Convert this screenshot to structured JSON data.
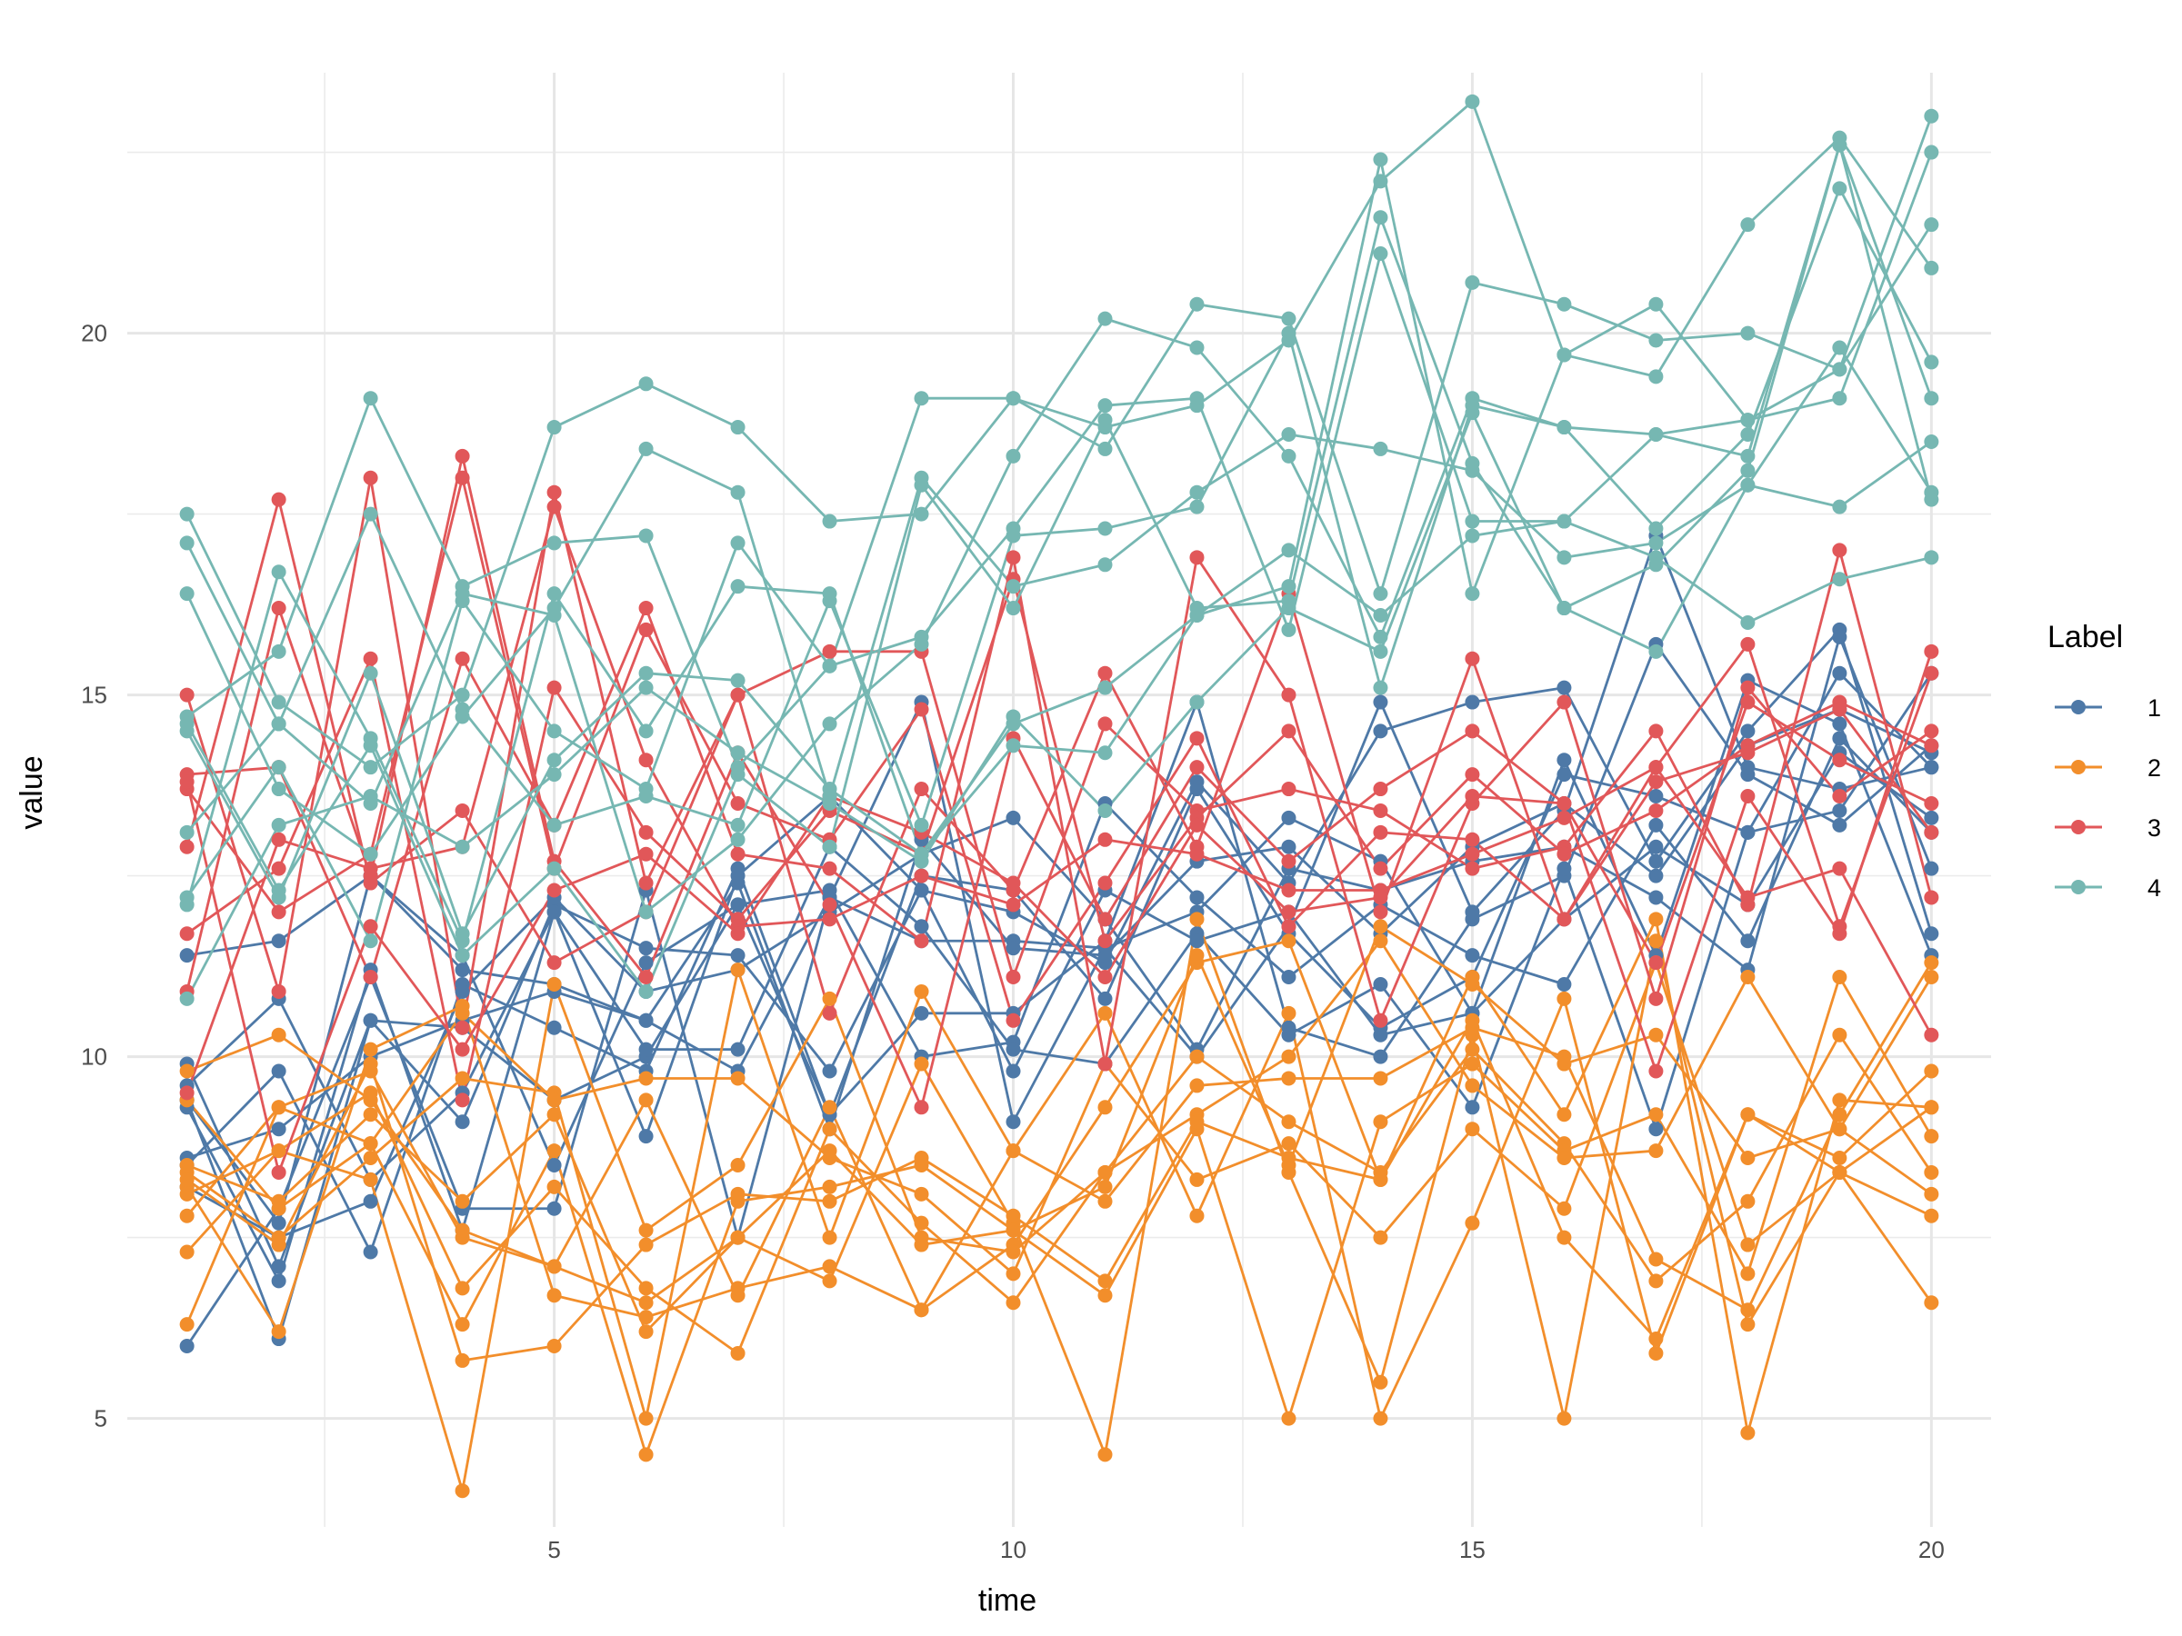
{
  "chart_data": {
    "type": "line",
    "xlabel": "time",
    "ylabel": "value",
    "xlim": [
      0.35,
      20.65
    ],
    "ylim": [
      3.5,
      23.6
    ],
    "x_ticks": [
      5,
      10,
      15,
      20
    ],
    "x_tick_labels": [
      "5",
      "10",
      "15",
      "20"
    ],
    "y_ticks": [
      5,
      10,
      15,
      20
    ],
    "y_tick_labels": [
      "5",
      "10",
      "15",
      "20"
    ],
    "x_minor": [
      2.5,
      7.5,
      12.5,
      17.5
    ],
    "y_minor": [
      7.5,
      12.5,
      17.5,
      22.5
    ],
    "grid": true,
    "legend": {
      "title": "Label",
      "position": "right",
      "entries": [
        {
          "label": "1",
          "color": "#4e79a7"
        },
        {
          "label": "2",
          "color": "#f28e2b"
        },
        {
          "label": "3",
          "color": "#e15759"
        },
        {
          "label": "4",
          "color": "#76b7b2"
        }
      ]
    },
    "x": [
      1,
      2,
      3,
      4,
      5,
      6,
      7,
      8,
      9,
      10,
      11,
      12,
      13,
      14,
      15,
      16,
      17,
      18,
      19,
      20
    ],
    "series": [
      {
        "group": "1",
        "values": [
          9.9,
          7.1,
          10.5,
          9.1,
          12.1,
          11.5,
          11.4,
          9.8,
          12.3,
          12.0,
          11.3,
          13.8,
          12.4,
          14.5,
          14.9,
          15.1,
          12.7,
          14.5,
          15.9,
          11.7
        ]
      },
      {
        "group": "1",
        "values": [
          11.4,
          11.6,
          12.5,
          11.2,
          11.0,
          10.5,
          9.8,
          12.2,
          14.9,
          9.1,
          11.5,
          12.0,
          13.3,
          12.7,
          10.6,
          14.1,
          11.4,
          15.2,
          14.6,
          11.4
        ]
      },
      {
        "group": "1",
        "values": [
          9.4,
          6.1,
          10.5,
          10.4,
          9.4,
          10.0,
          12.1,
          12.3,
          10.0,
          10.2,
          13.5,
          12.2,
          11.1,
          12.1,
          11.4,
          11.0,
          13.2,
          11.6,
          14.4,
          13.1
        ]
      },
      {
        "group": "1",
        "values": [
          8.5,
          9.8,
          7.3,
          11.0,
          10.4,
          9.8,
          12.6,
          9.2,
          10.6,
          10.6,
          11.6,
          14.9,
          10.4,
          10.0,
          11.9,
          12.5,
          15.7,
          13.9,
          13.2,
          14.3
        ]
      },
      {
        "group": "1",
        "values": [
          8.2,
          7.5,
          8.0,
          10.9,
          12.2,
          10.9,
          11.2,
          12.0,
          12.8,
          13.3,
          11.9,
          10.1,
          12.6,
          12.3,
          12.7,
          12.9,
          12.2,
          11.2,
          15.8,
          12.6
        ]
      },
      {
        "group": "1",
        "values": [
          6.0,
          7.9,
          11.1,
          7.9,
          7.9,
          12.3,
          7.5,
          12.2,
          11.6,
          11.6,
          11.5,
          10.0,
          11.8,
          14.9,
          12.0,
          13.4,
          17.2,
          14.0,
          13.7,
          14.0
        ]
      },
      {
        "group": "1",
        "values": [
          9.6,
          10.8,
          8.3,
          9.5,
          12.0,
          10.1,
          10.1,
          12.9,
          11.8,
          10.1,
          9.9,
          11.7,
          10.3,
          11.0,
          9.3,
          12.6,
          9.0,
          13.1,
          13.4,
          15.3
        ]
      },
      {
        "group": "1",
        "values": [
          9.3,
          6.9,
          11.2,
          7.6,
          12.0,
          8.9,
          12.5,
          13.6,
          12.3,
          9.8,
          12.3,
          11.6,
          12.0,
          10.3,
          10.6,
          11.9,
          12.9,
          12.1,
          14.2,
          13.3
        ]
      },
      {
        "group": "1",
        "values": [
          9.4,
          7.7,
          12.5,
          11.4,
          8.5,
          11.3,
          12.1,
          9.2,
          12.5,
          12.3,
          10.8,
          13.7,
          11.7,
          10.4,
          11.1,
          13.9,
          13.6,
          13.1,
          15.3,
          14.0
        ]
      },
      {
        "group": "1",
        "values": [
          8.6,
          9.0,
          10.0,
          10.5,
          10.9,
          10.5,
          12.4,
          9.0,
          13.0,
          11.5,
          11.4,
          12.7,
          12.9,
          11.7,
          12.9,
          13.5,
          12.5,
          14.3,
          14.8,
          14.2
        ]
      },
      {
        "group": "2",
        "values": [
          7.8,
          9.3,
          9.8,
          7.5,
          7.1,
          9.4,
          6.7,
          9.3,
          6.5,
          7.4,
          9.3,
          11.3,
          11.6,
          8.3,
          11.1,
          9.2,
          11.9,
          4.8,
          9.4,
          9.3
        ]
      },
      {
        "group": "2",
        "values": [
          9.8,
          10.3,
          9.4,
          7.6,
          7.1,
          6.6,
          7.5,
          6.9,
          9.9,
          7.7,
          4.5,
          11.9,
          8.4,
          5.5,
          10.3,
          5.0,
          11.6,
          6.3,
          8.4,
          9.3
        ]
      },
      {
        "group": "2",
        "values": [
          8.1,
          8.7,
          8.3,
          4.0,
          11.0,
          7.6,
          8.5,
          10.8,
          7.5,
          7.3,
          8.4,
          10.0,
          9.1,
          8.4,
          10.1,
          8.8,
          6.9,
          8.0,
          10.3,
          8.4
        ]
      },
      {
        "group": "2",
        "values": [
          8.4,
          7.5,
          8.6,
          9.7,
          9.5,
          5.0,
          11.2,
          7.5,
          10.9,
          8.7,
          8.0,
          9.6,
          9.7,
          9.7,
          10.4,
          10.0,
          7.2,
          6.5,
          9.2,
          11.3
        ]
      },
      {
        "group": "2",
        "values": [
          9.4,
          7.9,
          8.8,
          10.6,
          9.4,
          9.7,
          9.7,
          8.6,
          8.1,
          7.0,
          9.9,
          8.3,
          8.8,
          7.5,
          9.0,
          7.9,
          11.3,
          7.4,
          8.4,
          6.6
        ]
      },
      {
        "group": "2",
        "values": [
          6.3,
          9.3,
          8.8,
          6.3,
          8.7,
          4.5,
          8.0,
          8.2,
          8.5,
          7.6,
          6.7,
          9.0,
          5.0,
          9.1,
          9.9,
          8.7,
          9.2,
          7.0,
          11.1,
          8.9
        ]
      },
      {
        "group": "2",
        "values": [
          8.2,
          6.2,
          10.1,
          10.7,
          6.7,
          6.4,
          6.8,
          7.1,
          6.5,
          8.7,
          10.6,
          7.8,
          10.6,
          5.0,
          7.7,
          10.8,
          5.9,
          9.2,
          8.4,
          7.8
        ]
      },
      {
        "group": "2",
        "values": [
          7.3,
          8.7,
          9.5,
          6.8,
          8.2,
          6.8,
          5.9,
          9.0,
          7.7,
          6.6,
          8.4,
          9.2,
          10.0,
          11.6,
          9.6,
          8.6,
          8.7,
          11.1,
          9.0,
          11.1
        ]
      },
      {
        "group": "2",
        "values": [
          8.3,
          7.4,
          9.9,
          5.8,
          6.0,
          7.4,
          8.1,
          8.0,
          8.6,
          7.8,
          6.9,
          9.1,
          8.6,
          8.3,
          10.5,
          7.5,
          6.1,
          9.2,
          8.6,
          9.8
        ]
      },
      {
        "group": "2",
        "values": [
          8.5,
          8.0,
          9.2,
          8.0,
          9.2,
          6.2,
          7.5,
          8.7,
          7.4,
          7.6,
          8.2,
          11.4,
          8.5,
          11.8,
          11.0,
          9.9,
          10.3,
          8.6,
          9.0,
          8.1
        ]
      },
      {
        "group": "3",
        "values": [
          15.0,
          10.9,
          18.0,
          10.4,
          17.8,
          12.4,
          15.0,
          10.6,
          13.7,
          12.3,
          15.3,
          12.9,
          16.4,
          12.0,
          15.5,
          11.9,
          14.0,
          15.7,
          11.8,
          15.3
        ]
      },
      {
        "group": "3",
        "values": [
          13.9,
          14.0,
          11.1,
          15.5,
          13.2,
          16.2,
          12.8,
          12.6,
          11.6,
          16.9,
          9.9,
          16.9,
          15.0,
          10.5,
          13.5,
          14.9,
          10.8,
          15.1,
          13.6,
          14.5
        ]
      },
      {
        "group": "3",
        "values": [
          12.9,
          17.7,
          12.4,
          13.4,
          11.3,
          12.0,
          15.0,
          15.6,
          15.6,
          11.1,
          14.6,
          13.4,
          13.7,
          13.4,
          12.6,
          12.9,
          14.5,
          12.1,
          17.0,
          12.2
        ]
      },
      {
        "group": "3",
        "values": [
          11.7,
          12.6,
          15.5,
          9.4,
          15.1,
          13.1,
          11.9,
          13.4,
          12.8,
          16.6,
          11.6,
          13.3,
          14.5,
          12.6,
          13.9,
          12.8,
          13.4,
          14.3,
          14.9,
          14.3
        ]
      },
      {
        "group": "3",
        "values": [
          10.9,
          16.2,
          12.5,
          18.3,
          12.7,
          11.1,
          14.2,
          12.1,
          9.3,
          14.4,
          11.9,
          14.0,
          12.7,
          13.7,
          14.5,
          13.5,
          9.8,
          13.6,
          11.7,
          15.6
        ]
      },
      {
        "group": "3",
        "values": [
          13.7,
          12.0,
          12.8,
          18.0,
          12.6,
          15.9,
          13.5,
          13.0,
          14.8,
          10.5,
          12.4,
          14.4,
          11.8,
          13.1,
          13.0,
          11.9,
          13.8,
          14.2,
          14.8,
          13.1
        ]
      },
      {
        "group": "3",
        "values": [
          9.5,
          13.0,
          12.6,
          12.9,
          17.6,
          14.1,
          11.8,
          11.9,
          12.5,
          12.1,
          13.0,
          12.8,
          12.3,
          12.3,
          12.8,
          13.3,
          14.0,
          12.2,
          12.6,
          10.3
        ]
      },
      {
        "group": "3",
        "values": [
          13.8,
          8.4,
          11.8,
          10.1,
          12.3,
          12.8,
          11.7,
          13.6,
          13.1,
          12.4,
          11.1,
          13.2,
          12.0,
          12.2,
          13.6,
          13.5,
          11.3,
          14.9,
          14.1,
          13.5
        ]
      },
      {
        "group": "4",
        "values": [
          17.5,
          14.9,
          14.0,
          15.0,
          18.7,
          19.3,
          18.7,
          17.4,
          17.5,
          19.1,
          18.7,
          19.0,
          19.9,
          22.1,
          23.2,
          19.7,
          19.4,
          21.5,
          22.7,
          20.9
        ]
      },
      {
        "group": "4",
        "values": [
          14.7,
          15.6,
          19.1,
          16.5,
          17.1,
          17.2,
          14.0,
          15.4,
          19.1,
          19.1,
          18.4,
          20.4,
          20.2,
          16.4,
          20.7,
          20.4,
          19.9,
          20.0,
          19.5,
          21.5
        ]
      },
      {
        "group": "4",
        "values": [
          16.4,
          13.7,
          12.8,
          14.7,
          16.2,
          18.4,
          17.8,
          13.6,
          18.0,
          16.5,
          16.8,
          17.8,
          18.6,
          18.4,
          18.1,
          16.9,
          17.1,
          17.9,
          19.8,
          17.8
        ]
      },
      {
        "group": "4",
        "values": [
          13.1,
          14.6,
          13.5,
          16.4,
          16.1,
          12.0,
          13.0,
          14.6,
          15.7,
          18.3,
          20.2,
          19.8,
          18.3,
          15.8,
          19.1,
          18.7,
          17.3,
          18.6,
          22.0,
          19.6
        ]
      },
      {
        "group": "4",
        "values": [
          12.1,
          16.7,
          14.4,
          11.6,
          16.4,
          14.5,
          16.5,
          16.4,
          12.8,
          14.6,
          15.1,
          16.1,
          16.5,
          22.4,
          16.4,
          19.7,
          20.4,
          18.8,
          19.1,
          22.5
        ]
      },
      {
        "group": "4",
        "values": [
          14.5,
          12.2,
          15.3,
          11.7,
          14.1,
          15.3,
          15.2,
          13.7,
          12.8,
          14.3,
          14.2,
          16.1,
          17.0,
          16.1,
          17.2,
          17.4,
          16.9,
          16.0,
          16.6,
          16.9
        ]
      },
      {
        "group": "4",
        "values": [
          12.2,
          14.0,
          11.6,
          16.3,
          14.5,
          13.7,
          17.1,
          15.4,
          15.8,
          17.3,
          19.0,
          19.1,
          15.9,
          21.1,
          17.4,
          17.4,
          18.6,
          18.3,
          22.6,
          17.7
        ]
      },
      {
        "group": "4",
        "values": [
          17.1,
          14.6,
          17.5,
          14.8,
          13.2,
          13.6,
          13.2,
          16.3,
          13.2,
          17.2,
          17.3,
          17.6,
          20.0,
          15.1,
          19.0,
          18.7,
          18.6,
          18.8,
          19.5,
          23.0
        ]
      },
      {
        "group": "4",
        "values": [
          10.8,
          13.2,
          13.6,
          12.9,
          13.9,
          15.1,
          14.2,
          13.5,
          12.7,
          14.7,
          13.4,
          14.9,
          16.2,
          15.6,
          18.9,
          16.2,
          16.8,
          18.1,
          22.6,
          19.1
        ]
      },
      {
        "group": "4",
        "values": [
          14.6,
          12.3,
          14.3,
          11.4,
          12.6,
          10.9,
          13.9,
          12.9,
          17.9,
          16.2,
          18.8,
          16.2,
          16.3,
          21.6,
          18.2,
          16.2,
          15.6,
          17.9,
          17.6,
          18.5
        ]
      }
    ]
  }
}
